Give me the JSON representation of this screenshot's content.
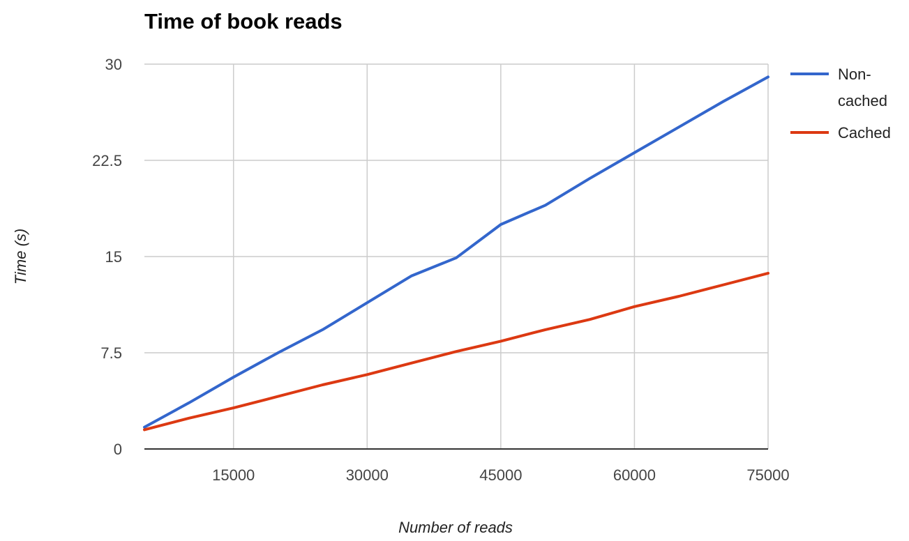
{
  "chart_data": {
    "type": "line",
    "title": "Time of book reads",
    "xlabel": "Number of reads",
    "ylabel": "Time (s)",
    "xlim": [
      5000,
      75000
    ],
    "ylim": [
      0,
      30
    ],
    "xticks": [
      15000,
      30000,
      45000,
      60000,
      75000
    ],
    "yticks": [
      0,
      7.5,
      15,
      22.5,
      30
    ],
    "ytick_labels": [
      "0",
      "7.5",
      "15",
      "22.5",
      "30"
    ],
    "grid": true,
    "legend_position": "right",
    "series": [
      {
        "name": "Non-cached",
        "legend_lines": [
          "Non-",
          "cached"
        ],
        "color": "#3366cc",
        "x": [
          5000,
          10000,
          15000,
          20000,
          25000,
          30000,
          35000,
          40000,
          45000,
          50000,
          55000,
          60000,
          65000,
          70000,
          75000
        ],
        "y": [
          1.7,
          3.6,
          5.6,
          7.5,
          9.3,
          11.4,
          13.5,
          14.9,
          17.5,
          19.0,
          21.1,
          23.1,
          25.1,
          27.1,
          29.0
        ]
      },
      {
        "name": "Cached",
        "legend_lines": [
          "Cached"
        ],
        "color": "#dc3912",
        "x": [
          5000,
          10000,
          15000,
          20000,
          25000,
          30000,
          35000,
          40000,
          45000,
          50000,
          55000,
          60000,
          65000,
          70000,
          75000
        ],
        "y": [
          1.5,
          2.4,
          3.2,
          4.1,
          5.0,
          5.8,
          6.7,
          7.6,
          8.4,
          9.3,
          10.1,
          11.1,
          11.9,
          12.8,
          13.7
        ]
      }
    ]
  }
}
